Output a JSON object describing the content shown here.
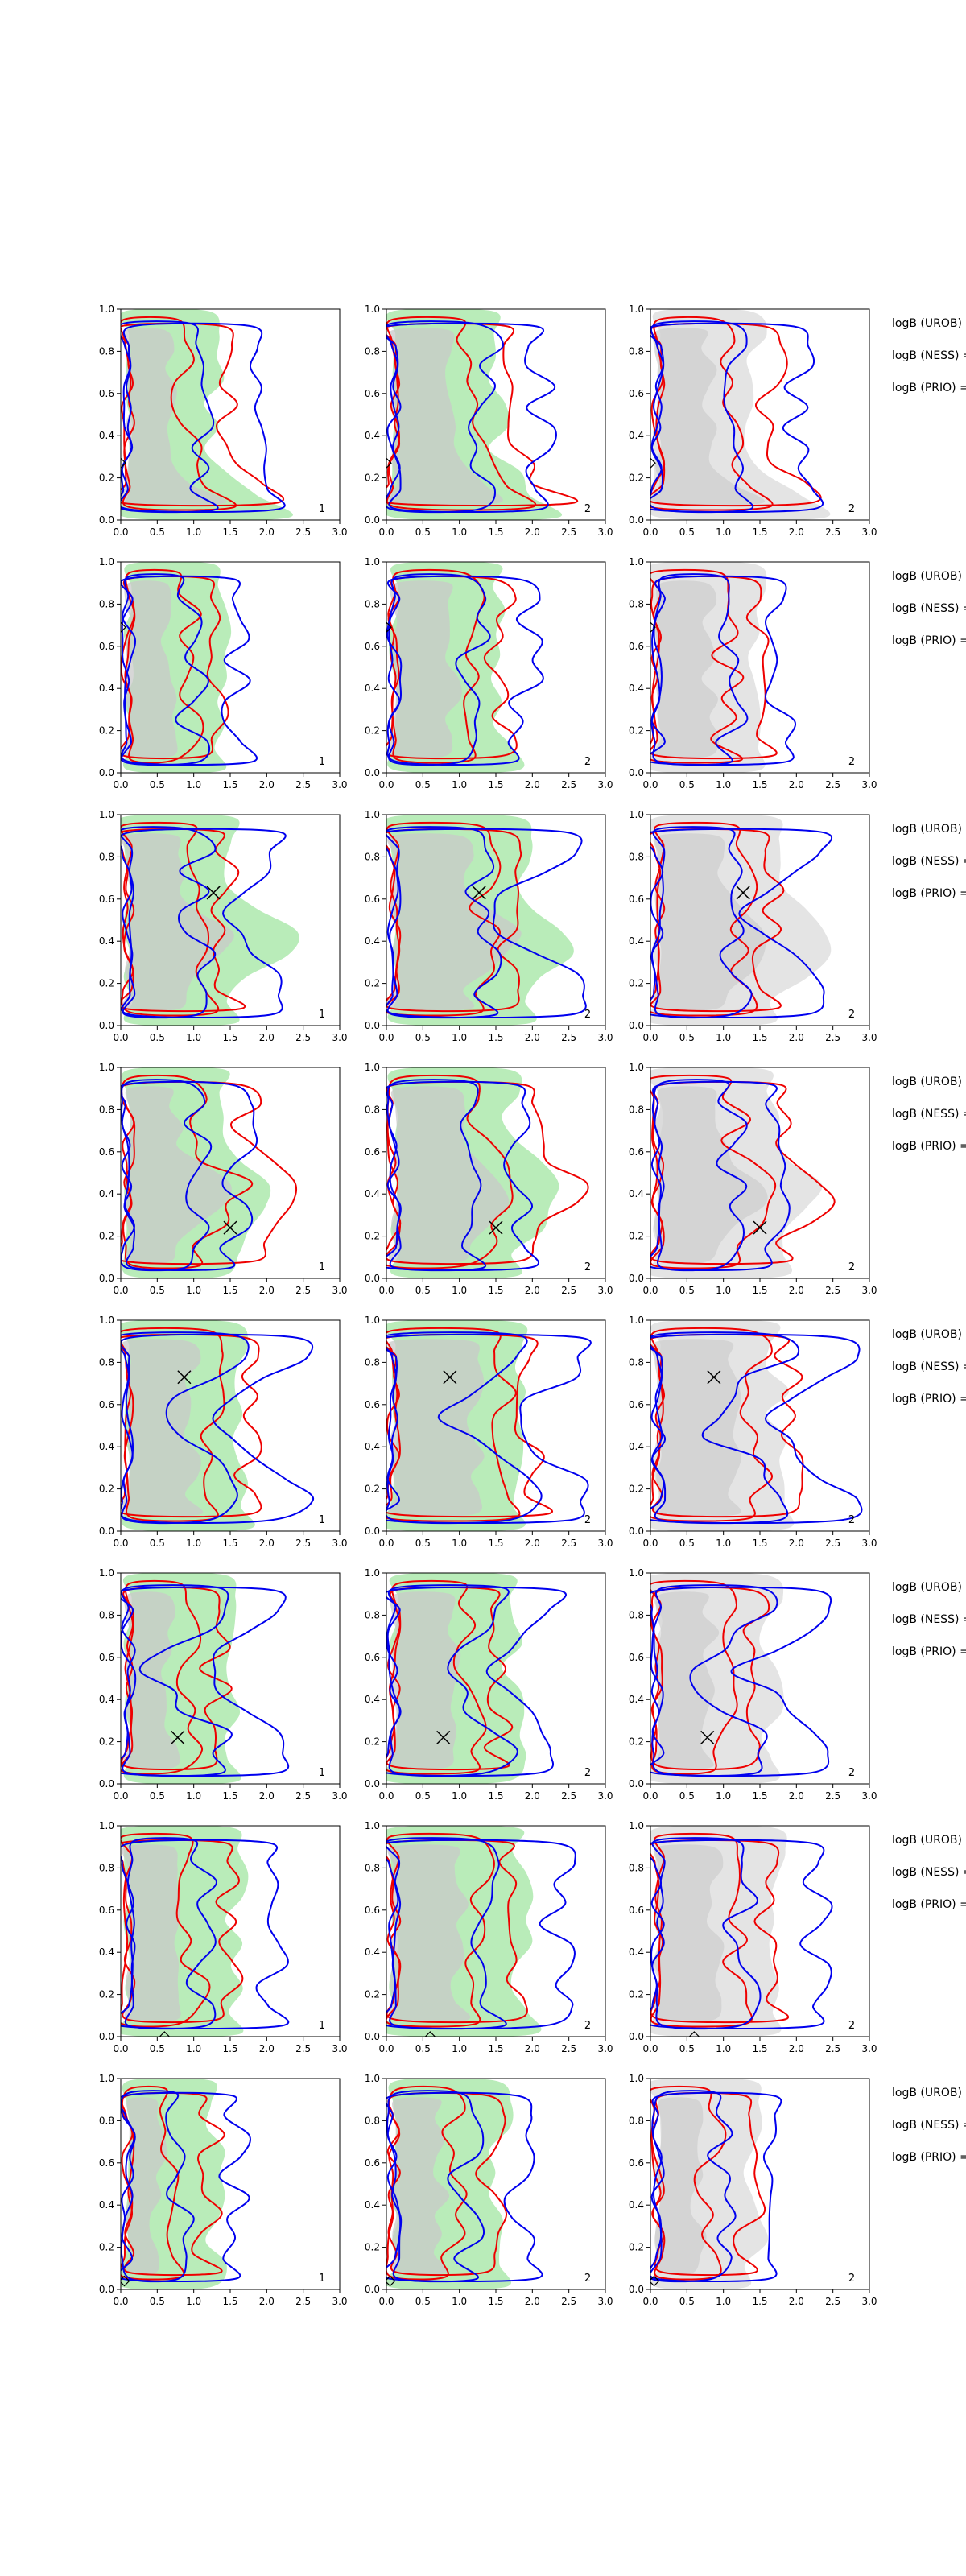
{
  "chart_data": {
    "type": "contour",
    "title": "",
    "xlabel": "",
    "ylabel": "",
    "xlim": [
      0,
      3.0
    ],
    "ylim": [
      0,
      1.0
    ],
    "x_ticks": [
      "0.0",
      "0.5",
      "1.0",
      "1.5",
      "2.0",
      "2.5",
      "3.0"
    ],
    "y_ticks": [
      "0.0",
      "0.2",
      "0.4",
      "0.6",
      "0.8",
      "1.0"
    ],
    "grid": false,
    "columns": [
      {
        "fill": "green",
        "panel_label": "1"
      },
      {
        "fill": "green",
        "panel_label": "2"
      },
      {
        "fill": "gray",
        "panel_label": "2"
      }
    ],
    "series": [
      {
        "name": "blue contours",
        "color": "#0000ee"
      },
      {
        "name": "red contours",
        "color": "#ee0000"
      }
    ],
    "side_labels": [
      "logB (UROB) =",
      "logB (NESS) =",
      "logB (PRIO) ="
    ],
    "rows": [
      {
        "row": 1,
        "marker": {
          "symbol": "diamond",
          "x": 0.0,
          "y": 0.27
        }
      },
      {
        "row": 2,
        "marker": {
          "symbol": "diamond",
          "x": 0.0,
          "y": 0.69
        }
      },
      {
        "row": 3,
        "marker": {
          "symbol": "x",
          "x": 1.27,
          "y": 0.63
        }
      },
      {
        "row": 4,
        "marker": {
          "symbol": "x",
          "x": 1.5,
          "y": 0.24
        }
      },
      {
        "row": 5,
        "marker": {
          "symbol": "x",
          "x": 0.87,
          "y": 0.73
        }
      },
      {
        "row": 6,
        "marker": {
          "symbol": "x",
          "x": 0.78,
          "y": 0.22
        }
      },
      {
        "row": 7,
        "marker": {
          "symbol": "diamond",
          "x": 0.6,
          "y": 0.0
        }
      },
      {
        "row": 8,
        "marker": {
          "symbol": "diamond",
          "x": 0.05,
          "y": 0.04
        }
      }
    ]
  },
  "colors": {
    "green_fill": "#b9ecb9",
    "green_inner": "#c9c9c9",
    "gray_fill": "#e4e4e4",
    "gray_inner": "#cfcfcf",
    "blue": "#0000ee",
    "red": "#ee0000"
  }
}
